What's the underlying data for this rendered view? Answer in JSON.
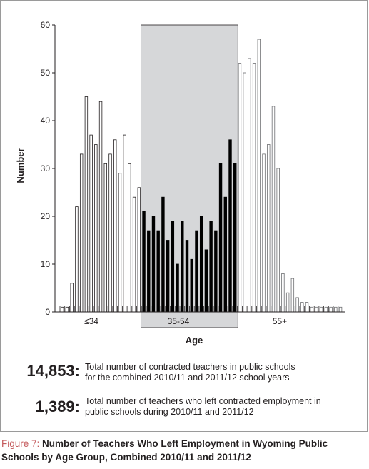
{
  "chart_data": {
    "type": "bar",
    "ylabel": "Number",
    "xlabel": "Age",
    "ylim": [
      0,
      60
    ],
    "yticks": [
      "0",
      "10",
      "20",
      "30",
      "40",
      "50",
      "60"
    ],
    "group_labels": [
      "≤34",
      "35-54",
      "55+"
    ],
    "highlight_group": "35-54",
    "ages": [
      18,
      19,
      20,
      21,
      22,
      23,
      24,
      25,
      26,
      27,
      28,
      29,
      30,
      31,
      32,
      33,
      34,
      35,
      36,
      37,
      38,
      39,
      40,
      41,
      42,
      43,
      44,
      45,
      46,
      47,
      48,
      49,
      50,
      51,
      52,
      53,
      54,
      55,
      56,
      57,
      58,
      59,
      60,
      61,
      62,
      63,
      64,
      65,
      66,
      67,
      68,
      69,
      70,
      71,
      72,
      73,
      74,
      75,
      76
    ],
    "values": [
      1,
      1,
      6,
      22,
      33,
      45,
      37,
      35,
      44,
      31,
      33,
      36,
      29,
      37,
      31,
      24,
      26,
      21,
      17,
      20,
      17,
      24,
      15,
      19,
      10,
      19,
      15,
      11,
      17,
      20,
      13,
      19,
      17,
      31,
      24,
      36,
      31,
      52,
      50,
      53,
      52,
      57,
      33,
      35,
      43,
      30,
      8,
      4,
      7,
      3,
      2,
      2,
      1,
      1,
      1,
      1,
      1,
      1,
      1
    ]
  },
  "stats": [
    {
      "number": "14,853:",
      "line1": "Total number of contracted teachers in public schools",
      "line2": "for the combined 2010/11 and 2011/12 school years"
    },
    {
      "number": "1,389:",
      "line1": "Total number of teachers who left contracted employment in",
      "line2": "public schools during 2010/11 and 2011/12"
    }
  ],
  "caption": {
    "label": "Figure 7:",
    "text": "Number of Teachers Who Left Employment in Wyoming Public Schools by Age Group, Combined 2010/11 and 2011/12"
  }
}
